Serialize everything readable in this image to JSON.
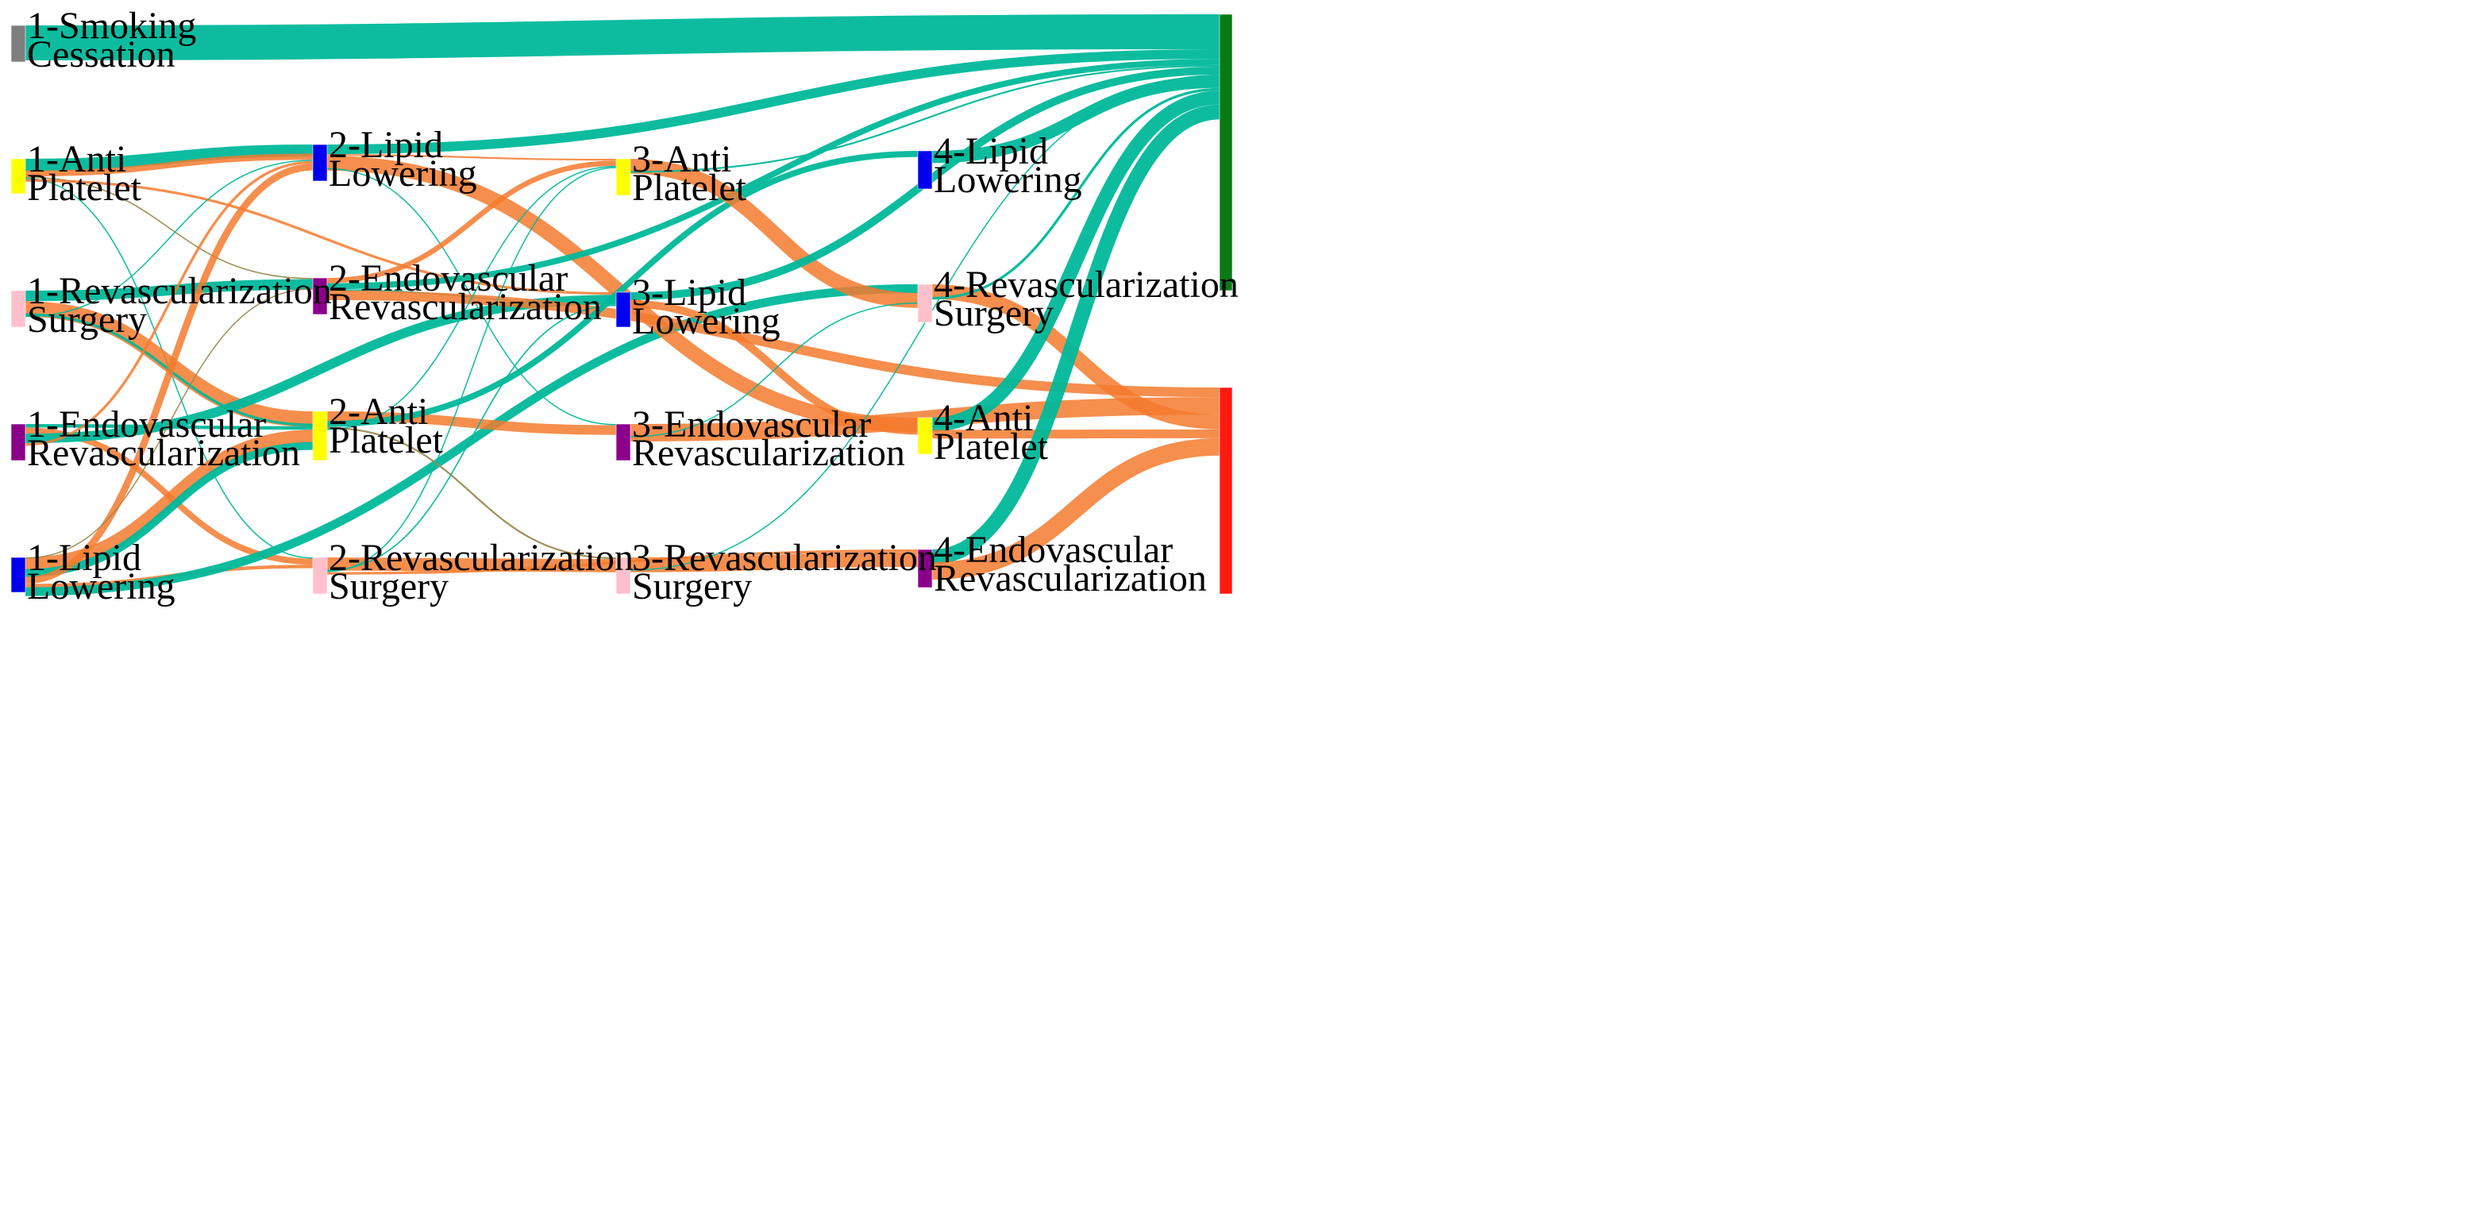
{
  "colors": {
    "positive_flow": "#00b89a",
    "negative_flow": "#f57a2e",
    "positive_sink": "#0a7a14",
    "negative_sink": "#ff1a10"
  },
  "nodes": [
    {
      "id": "n1-smoking",
      "col": 0,
      "label1": "1-Smoking",
      "label2": "Cessation",
      "color": "#7f7f7f"
    },
    {
      "id": "n1-anti",
      "col": 0,
      "label1": "1-Anti",
      "label2": "Platelet",
      "color": "#ffff00"
    },
    {
      "id": "n1-revsurg",
      "col": 0,
      "label1": "1-Revascularization",
      "label2": "Surgery",
      "color": "#ffc0cb"
    },
    {
      "id": "n1-endo",
      "col": 0,
      "label1": "1-Endovascular",
      "label2": "Revascularization",
      "color": "#8b008b"
    },
    {
      "id": "n1-lipid",
      "col": 0,
      "label1": "1-Lipid",
      "label2": "Lowering",
      "color": "#0000ee"
    },
    {
      "id": "n2-lipid",
      "col": 1,
      "label1": "2-Lipid",
      "label2": "Lowering",
      "color": "#0000ee"
    },
    {
      "id": "n2-endo",
      "col": 1,
      "label1": "2-Endovascular",
      "label2": "Revascularization",
      "color": "#8b008b"
    },
    {
      "id": "n2-anti",
      "col": 1,
      "label1": "2-Anti",
      "label2": "Platelet",
      "color": "#ffff00"
    },
    {
      "id": "n2-revsurg",
      "col": 1,
      "label1": "2-Revascularization",
      "label2": "Surgery",
      "color": "#ffc0cb"
    },
    {
      "id": "n3-anti",
      "col": 2,
      "label1": "3-Anti",
      "label2": "Platelet",
      "color": "#ffff00"
    },
    {
      "id": "n3-lipid",
      "col": 2,
      "label1": "3-Lipid",
      "label2": "Lowering",
      "color": "#0000ee"
    },
    {
      "id": "n3-endo",
      "col": 2,
      "label1": "3-Endovascular",
      "label2": "Revascularization",
      "color": "#8b008b"
    },
    {
      "id": "n3-revsurg",
      "col": 2,
      "label1": "3-Revascularization",
      "label2": "Surgery",
      "color": "#ffc0cb"
    },
    {
      "id": "n4-lipid",
      "col": 3,
      "label1": "4-Lipid",
      "label2": "Lowering",
      "color": "#0000ee"
    },
    {
      "id": "n4-revsurg",
      "col": 3,
      "label1": "4-Revascularization",
      "label2": "Surgery",
      "color": "#ffc0cb"
    },
    {
      "id": "n4-anti",
      "col": 3,
      "label1": "4-Anti",
      "label2": "Platelet",
      "color": "#ffff00"
    },
    {
      "id": "n4-endo",
      "col": 3,
      "label1": "4-Endovascular",
      "label2": "Revascularization",
      "color": "#8b008b"
    },
    {
      "id": "sink-positive",
      "col": 4,
      "label1": "",
      "label2": "",
      "color": "#0a7a14"
    },
    {
      "id": "sink-negative",
      "col": 4,
      "label1": "",
      "label2": "",
      "color": "#ff1a10"
    }
  ],
  "links": [
    {
      "source": "n1-smoking",
      "target": "sink-positive",
      "value": 80,
      "kind": "positive"
    },
    {
      "source": "n1-anti",
      "target": "n2-lipid",
      "value": 28,
      "kind": "positive"
    },
    {
      "source": "n1-anti",
      "target": "n2-lipid",
      "value": 14,
      "kind": "negative"
    },
    {
      "source": "n1-anti",
      "target": "n2-endo",
      "value": 3,
      "kind": "mixed"
    },
    {
      "source": "n1-anti",
      "target": "n2-revsurg",
      "value": 2,
      "kind": "positive"
    },
    {
      "source": "n1-anti",
      "target": "n3-lipid",
      "value": 6,
      "kind": "negative"
    },
    {
      "source": "n1-revsurg",
      "target": "n2-endo",
      "value": 24,
      "kind": "positive"
    },
    {
      "source": "n1-revsurg",
      "target": "n2-anti",
      "value": 36,
      "kind": "negative"
    },
    {
      "source": "n1-revsurg",
      "target": "n2-anti",
      "value": 6,
      "kind": "positive"
    },
    {
      "source": "n1-revsurg",
      "target": "n2-lipid",
      "value": 2,
      "kind": "positive"
    },
    {
      "source": "n1-endo",
      "target": "n2-anti",
      "value": 8,
      "kind": "positive"
    },
    {
      "source": "n1-endo",
      "target": "n2-revsurg",
      "value": 14,
      "kind": "negative"
    },
    {
      "source": "n1-endo",
      "target": "n3-lipid",
      "value": 22,
      "kind": "positive"
    },
    {
      "source": "n1-endo",
      "target": "n2-lipid",
      "value": 6,
      "kind": "negative"
    },
    {
      "source": "n1-lipid",
      "target": "n2-anti",
      "value": 30,
      "kind": "negative"
    },
    {
      "source": "n1-lipid",
      "target": "n2-anti",
      "value": 18,
      "kind": "positive"
    },
    {
      "source": "n1-lipid",
      "target": "n2-lipid",
      "value": 16,
      "kind": "negative"
    },
    {
      "source": "n1-lipid",
      "target": "n2-revsurg",
      "value": 8,
      "kind": "negative"
    },
    {
      "source": "n1-lipid",
      "target": "n4-revsurg",
      "value": 20,
      "kind": "positive"
    },
    {
      "source": "n1-lipid",
      "target": "n2-endo",
      "value": 2,
      "kind": "mixed"
    },
    {
      "source": "n2-lipid",
      "target": "sink-positive",
      "value": 22,
      "kind": "positive"
    },
    {
      "source": "n2-lipid",
      "target": "n3-anti",
      "value": 4,
      "kind": "negative"
    },
    {
      "source": "n2-lipid",
      "target": "n4-anti",
      "value": 34,
      "kind": "negative"
    },
    {
      "source": "n2-lipid",
      "target": "n3-endo",
      "value": 2,
      "kind": "positive"
    },
    {
      "source": "n2-endo",
      "target": "n3-anti",
      "value": 12,
      "kind": "negative"
    },
    {
      "source": "n2-endo",
      "target": "sink-positive",
      "value": 14,
      "kind": "positive"
    },
    {
      "source": "n2-endo",
      "target": "n3-lipid",
      "value": 2,
      "kind": "positive"
    },
    {
      "source": "n2-endo",
      "target": "sink-negative",
      "value": 22,
      "kind": "negative"
    },
    {
      "source": "n2-anti",
      "target": "n3-endo",
      "value": 22,
      "kind": "negative"
    },
    {
      "source": "n2-anti",
      "target": "n4-lipid",
      "value": 14,
      "kind": "positive"
    },
    {
      "source": "n2-anti",
      "target": "n3-revsurg",
      "value": 4,
      "kind": "mixed"
    },
    {
      "source": "n2-anti",
      "target": "n3-anti",
      "value": 2,
      "kind": "positive"
    },
    {
      "source": "n2-revsurg",
      "target": "n3-revsurg",
      "value": 30,
      "kind": "negative"
    },
    {
      "source": "n2-revsurg",
      "target": "n3-lipid",
      "value": 3,
      "kind": "positive"
    },
    {
      "source": "n2-revsurg",
      "target": "n3-anti",
      "value": 2,
      "kind": "positive"
    },
    {
      "source": "n2-revsurg",
      "target": "n4-endo",
      "value": 6,
      "kind": "negative"
    },
    {
      "source": "n3-anti",
      "target": "n4-revsurg",
      "value": 34,
      "kind": "negative"
    },
    {
      "source": "n3-anti",
      "target": "sink-positive",
      "value": 4,
      "kind": "positive"
    },
    {
      "source": "n3-lipid",
      "target": "sink-positive",
      "value": 18,
      "kind": "positive"
    },
    {
      "source": "n3-lipid",
      "target": "n4-anti",
      "value": 18,
      "kind": "negative"
    },
    {
      "source": "n3-endo",
      "target": "sink-negative",
      "value": 40,
      "kind": "negative"
    },
    {
      "source": "n3-endo",
      "target": "n4-revsurg",
      "value": 2,
      "kind": "positive"
    },
    {
      "source": "n3-revsurg",
      "target": "n4-endo",
      "value": 34,
      "kind": "negative"
    },
    {
      "source": "n3-revsurg",
      "target": "sink-positive",
      "value": 2,
      "kind": "positive"
    },
    {
      "source": "n4-lipid",
      "target": "sink-positive",
      "value": 28,
      "kind": "positive"
    },
    {
      "source": "n4-revsurg",
      "target": "sink-negative",
      "value": 34,
      "kind": "negative"
    },
    {
      "source": "n4-revsurg",
      "target": "sink-positive",
      "value": 6,
      "kind": "positive"
    },
    {
      "source": "n4-anti",
      "target": "sink-positive",
      "value": 32,
      "kind": "positive"
    },
    {
      "source": "n4-anti",
      "target": "sink-negative",
      "value": 20,
      "kind": "negative"
    },
    {
      "source": "n4-endo",
      "target": "sink-positive",
      "value": 34,
      "kind": "positive"
    },
    {
      "source": "n4-endo",
      "target": "sink-negative",
      "value": 40,
      "kind": "negative"
    }
  ]
}
